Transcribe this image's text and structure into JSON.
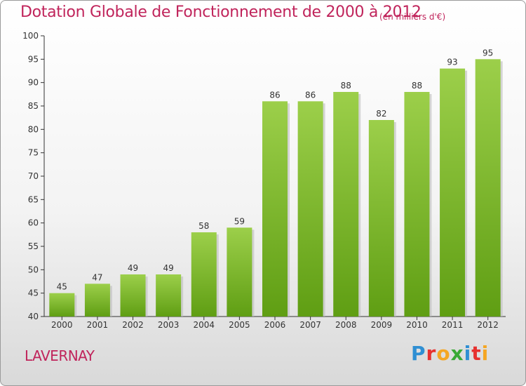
{
  "header": {
    "title": "Dotation Globale de Fonctionnement de 2000 à 2012",
    "subtitle": "(en milliers d'€)"
  },
  "footer": {
    "commune": "LAVERNAY",
    "logo_text": "Proxiti",
    "logo_colors": [
      "#2f8fd3",
      "#e7312f",
      "#f5a623",
      "#39a935",
      "#2f8fd3",
      "#e7312f",
      "#f5a623"
    ]
  },
  "chart_data": {
    "type": "bar",
    "categories": [
      "2000",
      "2001",
      "2002",
      "2003",
      "2004",
      "2005",
      "2006",
      "2007",
      "2008",
      "2009",
      "2010",
      "2011",
      "2012"
    ],
    "values": [
      45,
      47,
      49,
      49,
      58,
      59,
      86,
      86,
      88,
      82,
      88,
      93,
      95
    ],
    "ylim": [
      40,
      100
    ],
    "yticks": [
      40,
      45,
      50,
      55,
      60,
      65,
      70,
      75,
      80,
      85,
      90,
      95,
      100
    ],
    "grid": false,
    "bar_color_top": "#9ccf4a",
    "bar_color_bottom": "#5f9e13"
  }
}
